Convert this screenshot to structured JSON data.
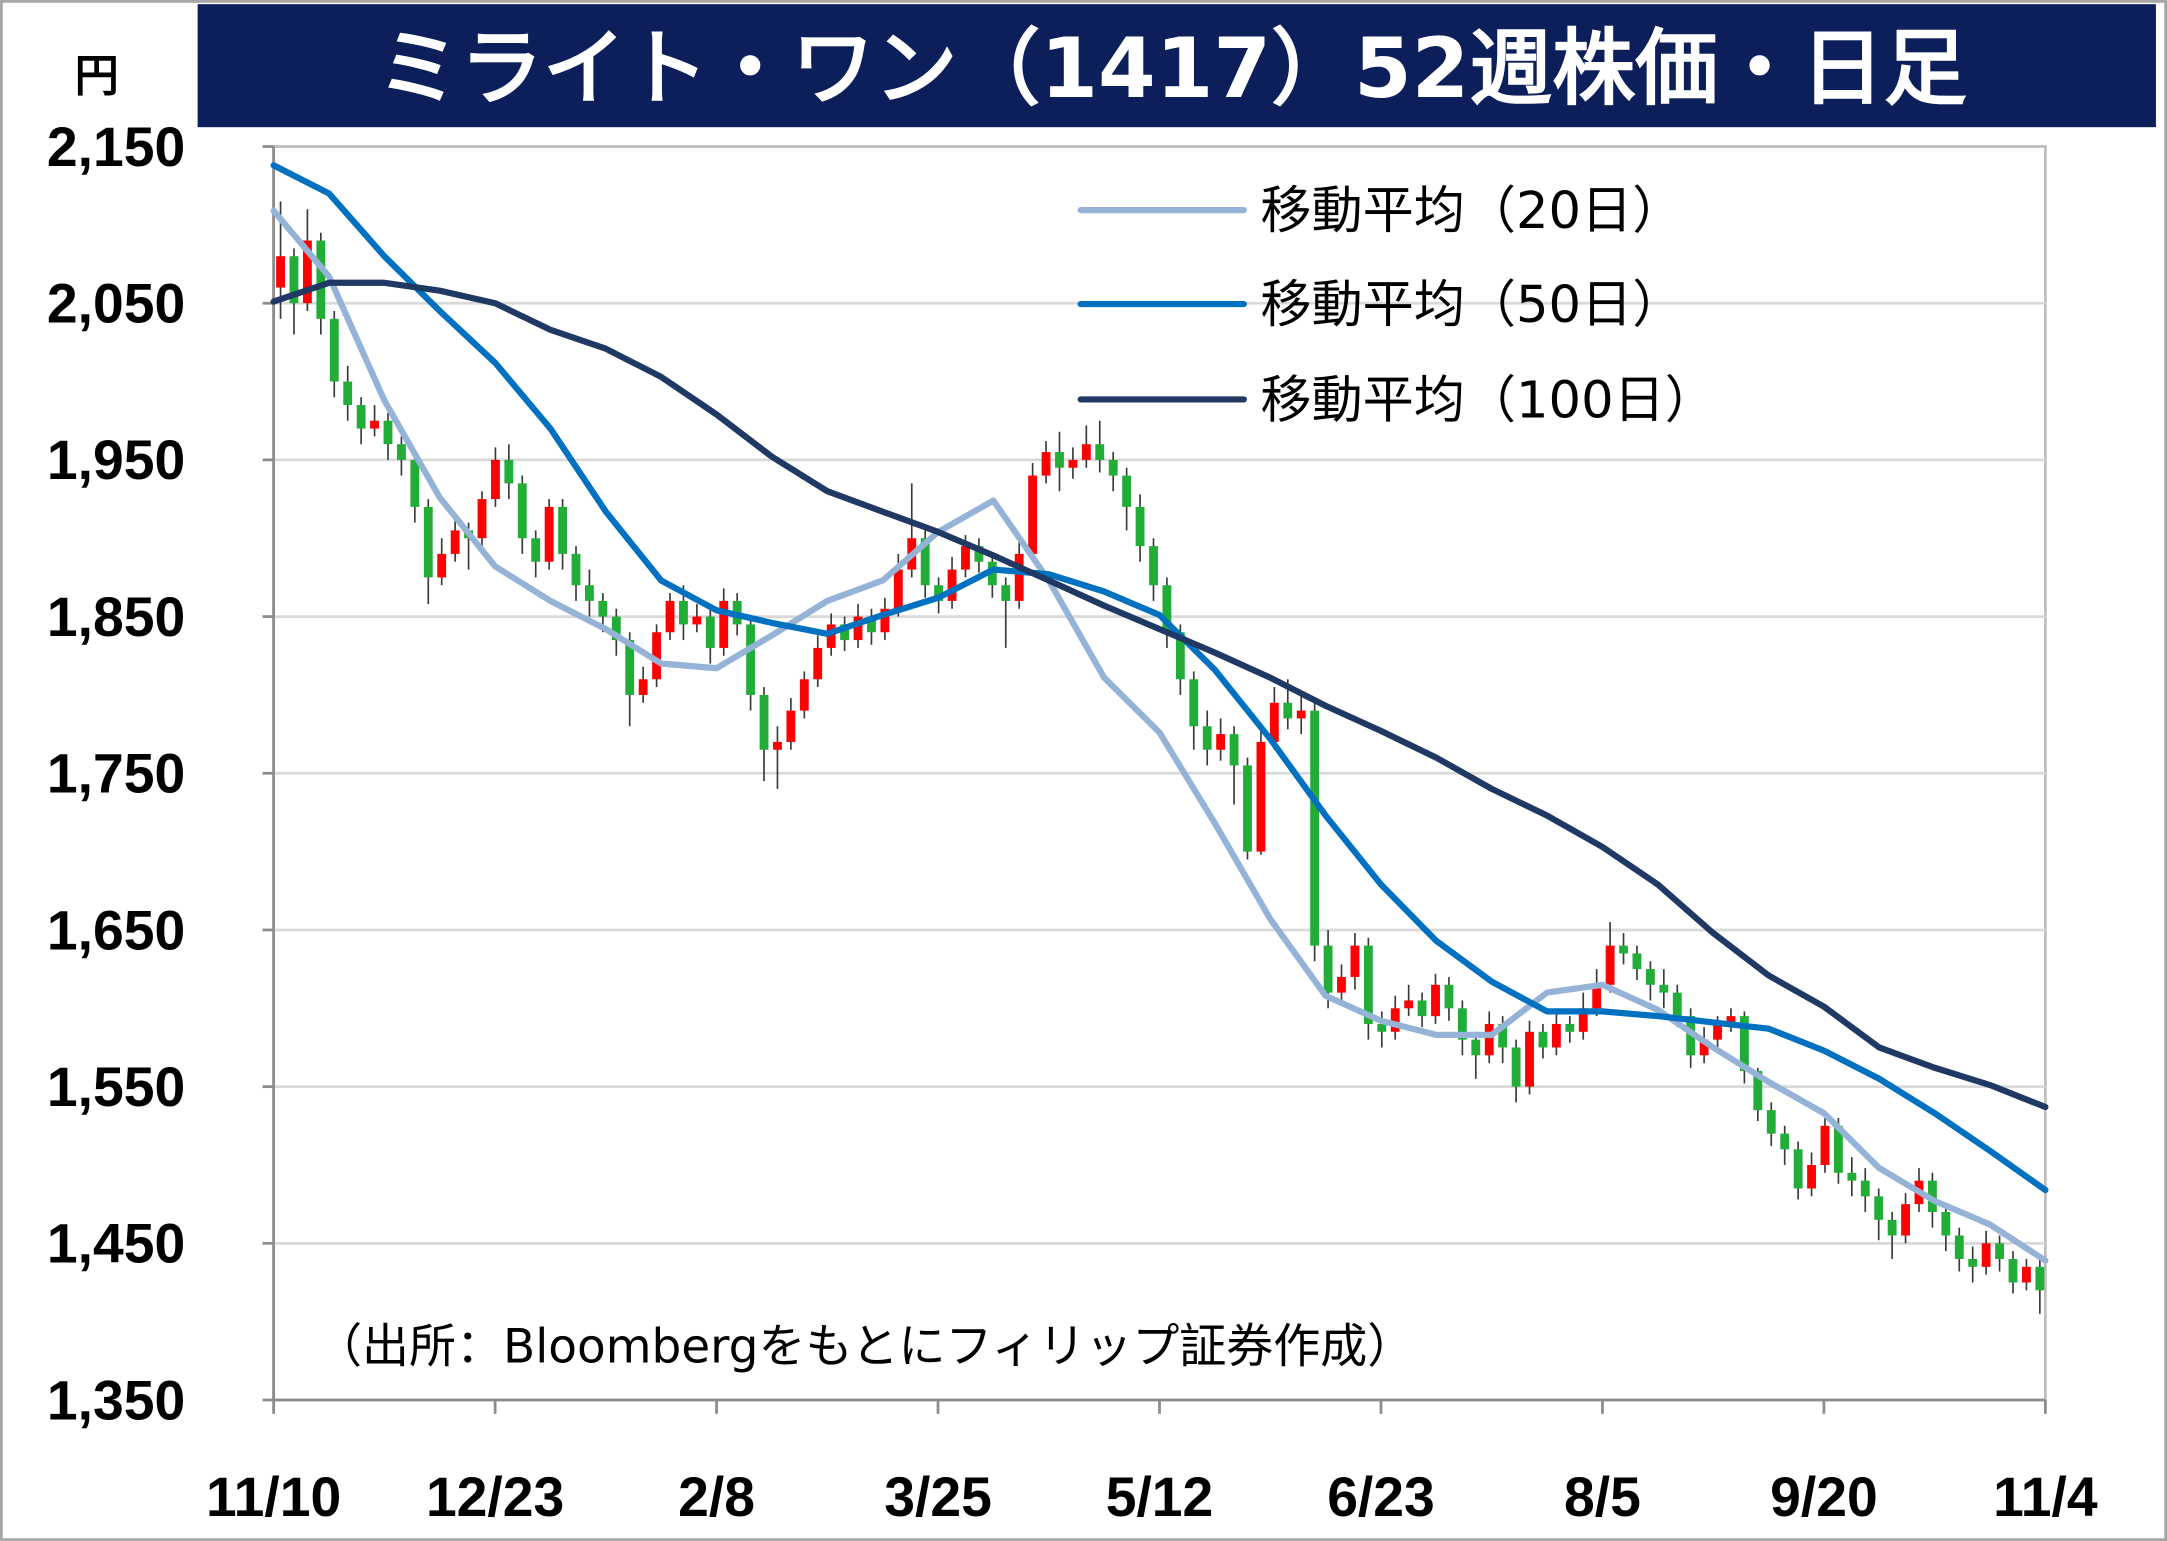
{
  "source_note": "（出所：Bloombergをもとにフィリップ証券作成）",
  "colors": {
    "title_bar": "#0c1f5a"
  },
  "chart_data": {
    "type": "line",
    "title": "ミライト・ワン（1417）52週株価・日足",
    "ylabel": "円",
    "xlabel": "",
    "ylim": [
      1350,
      2150
    ],
    "yticks": [
      "2,150",
      "2,050",
      "1,950",
      "1,850",
      "1,750",
      "1,650",
      "1,550",
      "1,450",
      "1,350"
    ],
    "x_ticks": [
      "11/10",
      "12/23",
      "2/8",
      "3/25",
      "5/12",
      "6/23",
      "8/5",
      "9/20",
      "11/4"
    ],
    "grid": true,
    "legend": "top-right",
    "series": [
      {
        "name": "移動平均（20日）",
        "color": "#95b3d7",
        "values": [
          2109,
          2067,
          1988,
          1926,
          1882,
          1860,
          1842,
          1820,
          1817,
          1838,
          1860,
          1873,
          1904,
          1924,
          1873,
          1811,
          1776,
          1718,
          1657,
          1608,
          1592,
          1583,
          1583,
          1610,
          1615,
          1599,
          1575,
          1553,
          1533,
          1498,
          1477,
          1462,
          1439
        ]
      },
      {
        "name": "移動平均（50日）",
        "color": "#0070c0",
        "values": [
          2138,
          2120,
          2080,
          2045,
          2012,
          1970,
          1917,
          1873,
          1854,
          1846,
          1839,
          1851,
          1862,
          1880,
          1877,
          1866,
          1851,
          1816,
          1772,
          1723,
          1679,
          1643,
          1617,
          1598,
          1598,
          1595,
          1591,
          1587,
          1573,
          1555,
          1533,
          1509,
          1484
        ]
      },
      {
        "name": "移動平均（100日）",
        "color": "#1f3864",
        "values": [
          2051,
          2063,
          2063,
          2058,
          2050,
          2033,
          2021,
          2003,
          1979,
          1952,
          1930,
          1917,
          1904,
          1889,
          1873,
          1857,
          1842,
          1827,
          1811,
          1793,
          1777,
          1760,
          1740,
          1723,
          1703,
          1679,
          1648,
          1621,
          1601,
          1575,
          1562,
          1551,
          1537
        ]
      }
    ],
    "candlestick": {
      "up_color": "#ff0000",
      "down_color": "#22ac38",
      "ohlc": [
        [
          2060,
          2115,
          2040,
          2080
        ],
        [
          2080,
          2085,
          2030,
          2050
        ],
        [
          2050,
          2110,
          2045,
          2090
        ],
        [
          2090,
          2095,
          2030,
          2040
        ],
        [
          2040,
          2045,
          1990,
          2000
        ],
        [
          2000,
          2010,
          1975,
          1985
        ],
        [
          1985,
          1990,
          1960,
          1970
        ],
        [
          1970,
          1985,
          1965,
          1975
        ],
        [
          1975,
          1980,
          1950,
          1960
        ],
        [
          1960,
          1965,
          1940,
          1950
        ],
        [
          1950,
          1955,
          1910,
          1920
        ],
        [
          1920,
          1925,
          1858,
          1875
        ],
        [
          1875,
          1900,
          1870,
          1890
        ],
        [
          1890,
          1912,
          1885,
          1905
        ],
        [
          1905,
          1910,
          1880,
          1900
        ],
        [
          1900,
          1930,
          1895,
          1925
        ],
        [
          1925,
          1958,
          1920,
          1950
        ],
        [
          1950,
          1960,
          1925,
          1935
        ],
        [
          1935,
          1940,
          1890,
          1900
        ],
        [
          1900,
          1905,
          1875,
          1885
        ],
        [
          1885,
          1925,
          1880,
          1920
        ],
        [
          1920,
          1925,
          1880,
          1890
        ],
        [
          1890,
          1895,
          1860,
          1870
        ],
        [
          1870,
          1880,
          1850,
          1860
        ],
        [
          1860,
          1865,
          1840,
          1850
        ],
        [
          1850,
          1855,
          1825,
          1835
        ],
        [
          1835,
          1840,
          1780,
          1800
        ],
        [
          1800,
          1818,
          1795,
          1810
        ],
        [
          1810,
          1845,
          1805,
          1840
        ],
        [
          1840,
          1865,
          1835,
          1860
        ],
        [
          1860,
          1870,
          1835,
          1845
        ],
        [
          1845,
          1858,
          1840,
          1850
        ],
        [
          1850,
          1855,
          1820,
          1830
        ],
        [
          1830,
          1868,
          1825,
          1860
        ],
        [
          1860,
          1865,
          1838,
          1845
        ],
        [
          1845,
          1850,
          1790,
          1800
        ],
        [
          1800,
          1805,
          1745,
          1765
        ],
        [
          1765,
          1780,
          1740,
          1770
        ],
        [
          1770,
          1798,
          1765,
          1790
        ],
        [
          1790,
          1815,
          1785,
          1810
        ],
        [
          1810,
          1838,
          1805,
          1830
        ],
        [
          1830,
          1852,
          1825,
          1845
        ],
        [
          1845,
          1850,
          1828,
          1835
        ],
        [
          1835,
          1858,
          1830,
          1850
        ],
        [
          1850,
          1855,
          1832,
          1840
        ],
        [
          1840,
          1862,
          1835,
          1855
        ],
        [
          1855,
          1890,
          1850,
          1880
        ],
        [
          1880,
          1935,
          1875,
          1900
        ],
        [
          1900,
          1905,
          1862,
          1870
        ],
        [
          1870,
          1875,
          1852,
          1860
        ],
        [
          1860,
          1888,
          1855,
          1880
        ],
        [
          1880,
          1902,
          1875,
          1895
        ],
        [
          1895,
          1900,
          1878,
          1885
        ],
        [
          1885,
          1890,
          1862,
          1870
        ],
        [
          1870,
          1875,
          1830,
          1860
        ],
        [
          1860,
          1898,
          1855,
          1890
        ],
        [
          1890,
          1948,
          1885,
          1940
        ],
        [
          1940,
          1962,
          1935,
          1955
        ],
        [
          1955,
          1968,
          1930,
          1945
        ],
        [
          1945,
          1958,
          1938,
          1950
        ],
        [
          1950,
          1972,
          1945,
          1960
        ],
        [
          1960,
          1975,
          1942,
          1950
        ],
        [
          1950,
          1955,
          1930,
          1940
        ],
        [
          1940,
          1945,
          1905,
          1920
        ],
        [
          1920,
          1928,
          1885,
          1895
        ],
        [
          1895,
          1900,
          1860,
          1870
        ],
        [
          1870,
          1875,
          1830,
          1840
        ],
        [
          1840,
          1845,
          1800,
          1810
        ],
        [
          1810,
          1815,
          1765,
          1780
        ],
        [
          1780,
          1790,
          1755,
          1765
        ],
        [
          1765,
          1785,
          1758,
          1775
        ],
        [
          1775,
          1780,
          1730,
          1755
        ],
        [
          1755,
          1760,
          1695,
          1700
        ],
        [
          1700,
          1778,
          1698,
          1770
        ],
        [
          1770,
          1805,
          1765,
          1795
        ],
        [
          1795,
          1810,
          1778,
          1785
        ],
        [
          1785,
          1800,
          1775,
          1790
        ],
        [
          1790,
          1795,
          1630,
          1640
        ],
        [
          1640,
          1650,
          1600,
          1610
        ],
        [
          1610,
          1628,
          1602,
          1620
        ],
        [
          1620,
          1648,
          1612,
          1640
        ],
        [
          1640,
          1645,
          1580,
          1590
        ],
        [
          1590,
          1598,
          1575,
          1585
        ],
        [
          1585,
          1608,
          1580,
          1600
        ],
        [
          1600,
          1615,
          1595,
          1605
        ],
        [
          1605,
          1610,
          1588,
          1595
        ],
        [
          1595,
          1622,
          1590,
          1615
        ],
        [
          1615,
          1620,
          1592,
          1600
        ],
        [
          1600,
          1605,
          1570,
          1580
        ],
        [
          1580,
          1585,
          1555,
          1570
        ],
        [
          1570,
          1598,
          1565,
          1590
        ],
        [
          1590,
          1595,
          1565,
          1575
        ],
        [
          1575,
          1580,
          1540,
          1550
        ],
        [
          1550,
          1592,
          1545,
          1585
        ],
        [
          1585,
          1590,
          1568,
          1575
        ],
        [
          1575,
          1598,
          1570,
          1590
        ],
        [
          1590,
          1595,
          1578,
          1585
        ],
        [
          1585,
          1610,
          1580,
          1600
        ],
        [
          1600,
          1625,
          1595,
          1615
        ],
        [
          1615,
          1655,
          1610,
          1640
        ],
        [
          1640,
          1648,
          1628,
          1635
        ],
        [
          1635,
          1640,
          1618,
          1625
        ],
        [
          1625,
          1630,
          1605,
          1615
        ],
        [
          1615,
          1625,
          1600,
          1610
        ],
        [
          1610,
          1615,
          1588,
          1595
        ],
        [
          1595,
          1600,
          1562,
          1570
        ],
        [
          1570,
          1588,
          1565,
          1580
        ],
        [
          1580,
          1595,
          1575,
          1590
        ],
        [
          1590,
          1600,
          1585,
          1595
        ],
        [
          1595,
          1598,
          1552,
          1560
        ],
        [
          1560,
          1562,
          1528,
          1535
        ],
        [
          1535,
          1540,
          1512,
          1520
        ],
        [
          1520,
          1525,
          1500,
          1510
        ],
        [
          1510,
          1515,
          1478,
          1485
        ],
        [
          1485,
          1508,
          1480,
          1500
        ],
        [
          1500,
          1532,
          1495,
          1525
        ],
        [
          1525,
          1530,
          1488,
          1495
        ],
        [
          1495,
          1505,
          1480,
          1490
        ],
        [
          1490,
          1498,
          1470,
          1480
        ],
        [
          1480,
          1485,
          1452,
          1465
        ],
        [
          1465,
          1470,
          1440,
          1455
        ],
        [
          1455,
          1482,
          1450,
          1475
        ],
        [
          1475,
          1498,
          1470,
          1490
        ],
        [
          1490,
          1495,
          1460,
          1470
        ],
        [
          1470,
          1475,
          1445,
          1455
        ],
        [
          1455,
          1460,
          1432,
          1440
        ],
        [
          1440,
          1448,
          1425,
          1435
        ],
        [
          1435,
          1458,
          1430,
          1450
        ],
        [
          1450,
          1455,
          1432,
          1440
        ],
        [
          1440,
          1445,
          1418,
          1425
        ],
        [
          1425,
          1440,
          1420,
          1435
        ],
        [
          1435,
          1440,
          1405,
          1420
        ]
      ]
    }
  }
}
